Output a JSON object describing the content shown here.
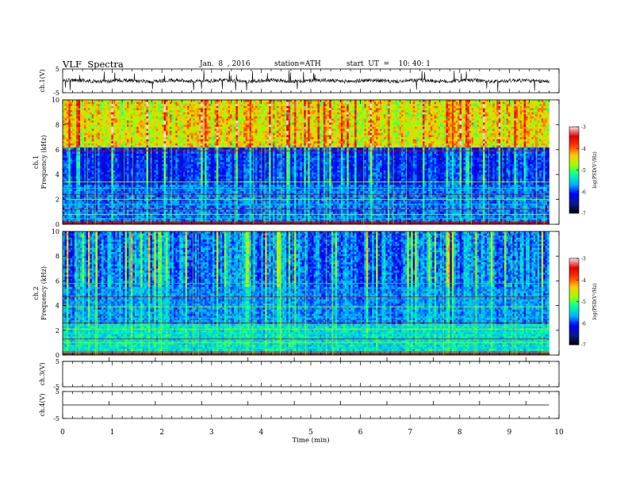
{
  "header": {
    "title": "VLF  Spectra",
    "date": "Jan.  8  , 2016",
    "station": "station=ATH",
    "start": "start  UT  =    10: 40: 1"
  },
  "chart_data": [
    {
      "type": "line",
      "name": "ch.1 waveform",
      "ylabel": "ch.1(V)",
      "ylim": [
        -5,
        5
      ],
      "yticks": [
        "5",
        "-5"
      ],
      "baseline": 0.0,
      "x_range": [
        0,
        9.8
      ]
    },
    {
      "type": "heatmap",
      "name": "ch.1 spectrogram",
      "ylabel_channel": "ch.1",
      "ylabel": "Frequency  (kHz)",
      "ylim": [
        0,
        10
      ],
      "yticks": [
        "0",
        "2",
        "4",
        "6",
        "8",
        "10"
      ],
      "x_range": [
        0,
        9.8
      ],
      "colorbar": {
        "label": "log(PSD(V²/Hz)",
        "range": [
          -7,
          -3
        ],
        "ticks": [
          "-3",
          "-4",
          "-5",
          "-6",
          "-7"
        ]
      }
    },
    {
      "type": "heatmap",
      "name": "ch.2 spectrogram",
      "ylabel_channel": "ch.2",
      "ylabel": "Frequency  (kHz)",
      "ylim": [
        0,
        10
      ],
      "yticks": [
        "0",
        "2",
        "4",
        "6",
        "8",
        "10"
      ],
      "x_range": [
        0,
        9.8
      ],
      "colorbar": {
        "label": "log(PSD(V²/Hz)",
        "range": [
          -7,
          -3
        ],
        "ticks": [
          "-3",
          "-4",
          "-5",
          "-6",
          "-7"
        ]
      }
    },
    {
      "type": "line",
      "name": "ch.3 waveform",
      "ylabel": "ch.3(V)",
      "ylim": [
        -5,
        5
      ],
      "yticks": [
        "5",
        "-5"
      ],
      "baseline": 5.0,
      "x_range": [
        0,
        9.8
      ]
    },
    {
      "type": "line",
      "name": "ch.4 waveform",
      "ylabel": "ch.4(V)",
      "ylim": [
        -5,
        5
      ],
      "yticks": [
        "5",
        "-5"
      ],
      "baseline": 0.0,
      "x_range": [
        0,
        9.8
      ]
    }
  ],
  "x_axis": {
    "label": "Time  (min)",
    "xlim": [
      0,
      10
    ],
    "ticks": [
      "0",
      "1",
      "2",
      "3",
      "4",
      "5",
      "6",
      "7",
      "8",
      "9",
      "10"
    ]
  },
  "colors": {
    "colormap": [
      "#000000",
      "#0a1a8c",
      "#0000ff",
      "#00b4ff",
      "#00ffa0",
      "#9cff00",
      "#ffcc00",
      "#ff3c00",
      "#dc0000",
      "#ffdcdc"
    ]
  }
}
